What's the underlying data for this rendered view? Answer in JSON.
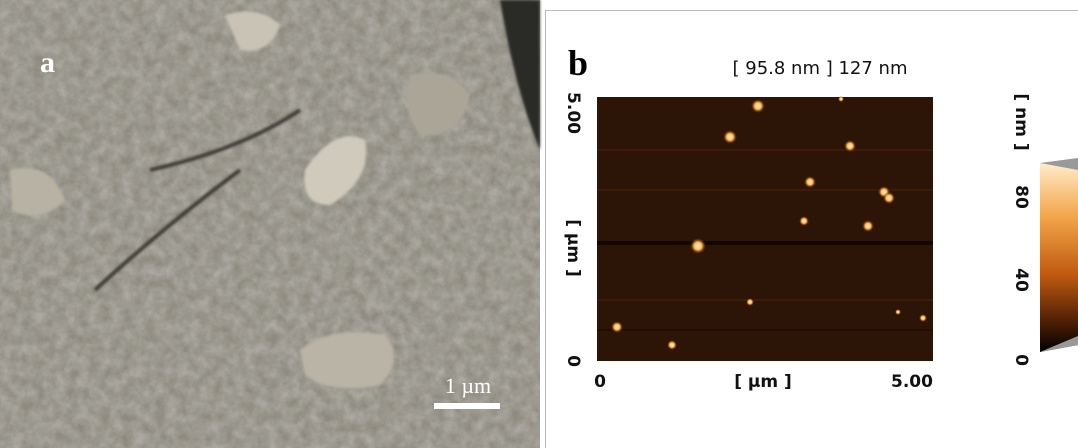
{
  "panel_a": {
    "label": "a",
    "scale_bar": "1 µm"
  },
  "panel_b": {
    "label": "b",
    "header": "[ 95.8 nm ] 127 nm",
    "x_axis": {
      "label": "[ µm ]",
      "min": "0",
      "max": "5.00"
    },
    "y_axis": {
      "label": "[ µm ]",
      "min": "0",
      "max": "5.00"
    },
    "colorbar": {
      "label": "[ nm ]",
      "ticks": [
        "0",
        "40",
        "80"
      ]
    }
  }
}
